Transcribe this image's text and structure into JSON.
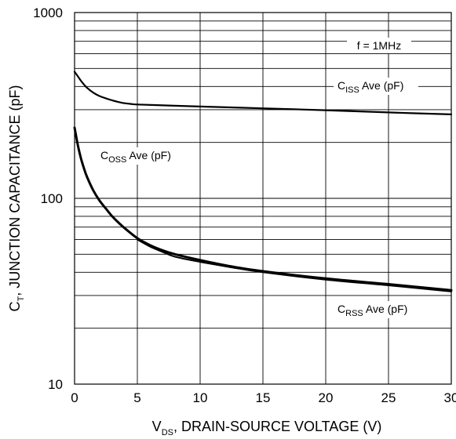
{
  "chart_data": {
    "type": "line",
    "xlabel": {
      "main": "V",
      "sub": "DS",
      "rest": ", DRAIN-SOURCE VOLTAGE (V)"
    },
    "ylabel": {
      "main": "C",
      "sub": "T",
      "rest": ", JUNCTION CAPACITANCE (pF)"
    },
    "x_ticks": [
      "0",
      "5",
      "10",
      "15",
      "20",
      "25",
      "30"
    ],
    "y_ticks": [
      "10",
      "100",
      "1000"
    ],
    "xlim": [
      0,
      30
    ],
    "ylim": [
      10,
      1000
    ],
    "y_scale": "log",
    "grid": true,
    "annotation": "f = 1MHz",
    "series": [
      {
        "name": {
          "main": "C",
          "sub": "ISS",
          "rest": " Ave (pF)"
        },
        "x": [
          0,
          0.25,
          0.5,
          0.75,
          1,
          1.5,
          2,
          2.5,
          3,
          3.5,
          4,
          4.5,
          5,
          7.5,
          10,
          15,
          20,
          25,
          30
        ],
        "y": [
          480,
          455,
          430,
          410,
          393,
          370,
          355,
          345,
          337,
          330,
          325,
          322,
          320,
          316,
          312,
          305,
          298,
          290,
          283
        ]
      },
      {
        "name": {
          "main": "C",
          "sub": "OSS",
          "rest": " Ave (pF)"
        },
        "x": [
          0,
          0.25,
          0.5,
          0.75,
          1,
          1.5,
          2,
          2.5,
          3,
          3.5,
          4,
          5,
          6,
          7,
          8,
          10,
          12.5,
          15,
          20,
          25,
          30
        ],
        "y": [
          240,
          195,
          165,
          145,
          130,
          110,
          97,
          88,
          80,
          74,
          69,
          61,
          56,
          52.5,
          50,
          46.5,
          43,
          40.5,
          37,
          34.5,
          32
        ]
      },
      {
        "name": {
          "main": "C",
          "sub": "RSS",
          "rest": " Ave (pF)"
        },
        "x": [
          5,
          6,
          7,
          8,
          10,
          12.5,
          15,
          20,
          25,
          30
        ],
        "y": [
          60,
          55,
          51.5,
          48.5,
          45.5,
          42.5,
          40,
          36.5,
          34,
          31.5
        ]
      }
    ]
  }
}
